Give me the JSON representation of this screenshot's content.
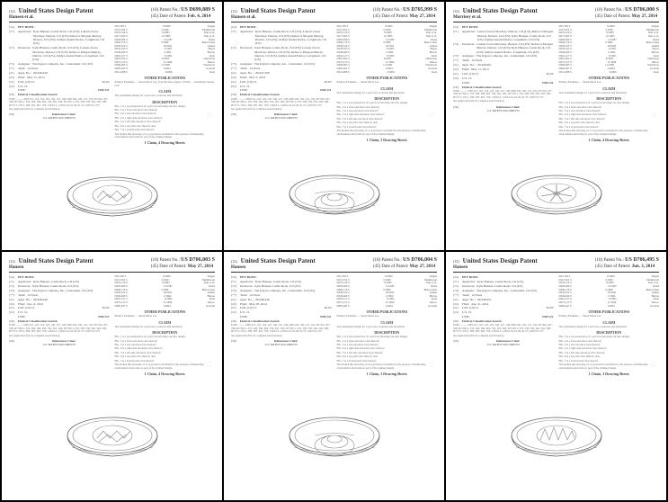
{
  "common": {
    "country_title": "United States Design Patent",
    "labels": {
      "patent_no": "Patent No.:",
      "date": "Date of Patent:",
      "title_code": "(54)",
      "applicant_code": "(71)",
      "applicant_label": "Applicant:",
      "inventors_code": "(72)",
      "inventors_label": "Inventors:",
      "assignee_code": "(73)",
      "assignee_label": "Assignee:",
      "term_code": "(**)",
      "term_label": "Term:",
      "appl_code": "(21)",
      "appl_label": "Appl. No.:",
      "filed_code": "(22)",
      "filed_label": "Filed:",
      "loc_code": "(51)",
      "loc_label": "LOC (10) Cl.",
      "uscl_code": "(52)",
      "uscl_label": "U.S. Cl.",
      "search_code": "(58)",
      "search_label": "Field of Classification Search",
      "refs_code": "(56)",
      "refs_label": "References Cited",
      "desc_head": "DESCRIPTION",
      "claim_head": "CLAIM",
      "refs_head": "U.S. PATENT DOCUMENTS",
      "other_head": "OTHER PUBLICATIONS"
    },
    "assignee": "The Kyjen Company, Inc., Centennial, CO (US)",
    "term": "14 Years",
    "loc": "30-03",
    "uscl_class": "USPC",
    "uscl_val": "D30/121",
    "search_text": "USPC .......... D30/121, 122, 124, 125, 126, 127, 128, D30/129, 130, 131, 132; D7/354, 357, 358, D7/392.1, 553, 560, 584, 602, 704, 361, 509, D7/550.1, 555, 558, 559, 562, 563, 568, D7/571, 576.1, 580, 587, 601, 703; 119/61.5, 119/61.54, 61.56, 61.57; 220/574, 575",
    "search_footer": "See application file for complete search history.",
    "claim_text": "The ornamental design for a pet bowl, as shown and described.",
    "desc_lines": [
      "FIG. 1 is a top perspective of a pet bowl showing our new design;",
      "FIG. 2 is a front elevation view thereof;",
      "FIG. 3 is a rear elevation view thereof;",
      "FIG. 4 is a right side elevation view thereof;",
      "FIG. 5 is a left side elevation view thereof;",
      "FIG. 6 is a top plan view thereof; and,",
      "FIG. 7 is a bottom plan view thereof.",
      "The broken line showing of a top portion is included for the purpose of illustrating environment and forms no part of the claimed design."
    ],
    "colors": {
      "border": "#000000",
      "text": "#333333",
      "faint": "#666666"
    }
  },
  "patents": [
    {
      "header_idx": "(12)",
      "inventor_line": "Hansen et al.",
      "patent_no_label": "(10)",
      "date_label": "(45)",
      "patent_no": "US D699,889 S",
      "date": "Feb. 4, 2014",
      "title": "PET BOWL",
      "applicant": "Kyle Hansen, Castle Rock, CO (US); Lauren Jowsa Morrisey, Denver, CO (US); Rebecca Morgan Murray, Denver, CO (US); Ashlyn Anand Dadoo, Longmont, CO (US)",
      "inventors": "Kyle Hansen, Castle Rock, CO (US); Lauren Jowsa Morrisey, Denver, CO (US); Rebecca Morgan Murray, Denver, CO (US); Ashlyn Anand Dadoo, Longmont, CO (US)",
      "appl_no": "29/448,459",
      "filed": "Mar. 11, 2013",
      "claim_summary": "1 Claim, 4 Drawing Sheets",
      "refs": [
        {
          "no": "D33,183 S",
          "date": "8/1900",
          "name": "Teague"
        },
        {
          "no": "D115,052 S",
          "date": "5/1939",
          "name": "Malmstrom"
        },
        {
          "no": "D270,129 S",
          "date": "8/1983",
          "name": "Dart et al."
        },
        {
          "no": "D271,843 S",
          "date": "12/1983",
          "name": "Dart et al."
        },
        {
          "no": "D293,499 S",
          "date": "12/1987",
          "name": "Weiss"
        },
        {
          "no": "D300,176 S",
          "date": "3/1989",
          "name": "Meier-Chen"
        },
        {
          "no": "D330,612 S",
          "date": "10/1992",
          "name": "Asmus"
        },
        {
          "no": "D333,543 S",
          "date": "2/1993",
          "name": "Hayes"
        },
        {
          "no": "D346,469 S",
          "date": "2/1994",
          "name": "Burton"
        },
        {
          "no": "D361,417 S",
          "date": "8/1995",
          "name": "Kratt"
        },
        {
          "no": "D361,654 S",
          "date": "8/1995",
          "name": "Gilbertson"
        },
        {
          "no": "D375,215 S",
          "date": "11/1996",
          "name": "DeLeo"
        },
        {
          "no": "D396,063 S",
          "date": "11/1998",
          "name": "Warburton"
        },
        {
          "no": "D485,647 S",
          "date": "1/2004",
          "name": "Grazioli"
        },
        {
          "no": "D514,908 S",
          "date": "2/2006",
          "name": "Kent"
        }
      ],
      "examiner_block": "Primary Examiner — Susan Moon Lee; (74) Attorney, Agent, or Firm — Greenberg Traurig LLP",
      "figure_type": "angular"
    },
    {
      "header_idx": "(12)",
      "inventor_line": "Hansen et al.",
      "patent_no_label": "(10)",
      "date_label": "(45)",
      "patent_no": "US D705,999 S",
      "date": "May 27, 2014",
      "title": "PET BOWL",
      "applicant": "Kyle Hansen, Castle Rock, CO (US); Lauren Jowsa Morrisey, Denver, CO (US); Rebecca Morgan Murray, Denver, CO (US); Ashlyn Anand Dadoo, Longmont, CO (US)",
      "inventors": "Kyle Hansen, Castle Rock, CO (US); Lauren Jowsa Morrisey, Denver, CO (US); Rebecca Morgan Murray, Denver, CO (US); Ashlyn Anand Dadoo, Longmont, CO (US)",
      "appl_no": "29/447,500",
      "filed": "Mar. 5, 2013",
      "claim_summary": "1 Claim, 3 Drawing Sheets",
      "refs": [
        {
          "no": "D33,183 S",
          "date": "8/1900",
          "name": "Teague"
        },
        {
          "no": "D115,052 S",
          "date": "5/1939",
          "name": "Malmstrom"
        },
        {
          "no": "D270,129 S",
          "date": "8/1983",
          "name": "Dart et al."
        },
        {
          "no": "D271,843 S",
          "date": "12/1983",
          "name": "Dart et al."
        },
        {
          "no": "D293,499 S",
          "date": "12/1987",
          "name": "Weiss"
        },
        {
          "no": "D300,176 S",
          "date": "3/1989",
          "name": "Meier-Chen"
        },
        {
          "no": "D330,612 S",
          "date": "10/1992",
          "name": "Asmus"
        },
        {
          "no": "D333,543 S",
          "date": "2/1993",
          "name": "Hayes"
        },
        {
          "no": "D346,469 S",
          "date": "2/1994",
          "name": "Burton"
        },
        {
          "no": "D361,417 S",
          "date": "8/1995",
          "name": "Kratt"
        },
        {
          "no": "D361,654 S",
          "date": "8/1995",
          "name": "Gilbertson"
        },
        {
          "no": "D375,215 S",
          "date": "11/1996",
          "name": "DeLeo"
        },
        {
          "no": "D396,063 S",
          "date": "11/1998",
          "name": "Warburton"
        },
        {
          "no": "D485,647 S",
          "date": "1/2004",
          "name": "Grazioli"
        },
        {
          "no": "D514,908 S",
          "date": "2/2006",
          "name": "Kent"
        }
      ],
      "examiner_block": "Primary Examiner — Susan Moon Lee",
      "figure_type": "spiral"
    },
    {
      "header_idx": "(12)",
      "inventor_line": "Morrisey et al.",
      "patent_no_label": "(10)",
      "date_label": "(45)",
      "patent_no": "US D706,000 S",
      "date": "May 27, 2014",
      "title": "PET BOWL",
      "applicant": "Lauren Jowsa Morrisey, Denver, CO (US); Rebecca Morgan Murray, Denver, CO (US); Kyle Hansen, Castle Rock, CO (US); Ashlyn Anand Dadoo, Longmont, CO (US)",
      "inventors": "Lauren Jowsa Morrisey, Denver, CO (US); Rebecca Morgan Murray, Denver, CO (US); Kyle Hansen, Castle Rock, CO (US); Ashlyn Anand Dadoo, Longmont, CO (US)",
      "appl_no": "29/448,461",
      "filed": "Mar. 11, 2013",
      "claim_summary": "1 Claim, 4 Drawing Sheets",
      "refs": [
        {
          "no": "D33,183 S",
          "date": "8/1900",
          "name": "Teague"
        },
        {
          "no": "D115,052 S",
          "date": "5/1939",
          "name": "Malmstrom"
        },
        {
          "no": "D270,129 S",
          "date": "8/1983",
          "name": "Dart et al."
        },
        {
          "no": "D271,843 S",
          "date": "12/1983",
          "name": "Dart et al."
        },
        {
          "no": "D293,499 S",
          "date": "12/1987",
          "name": "Weiss"
        },
        {
          "no": "D300,176 S",
          "date": "3/1989",
          "name": "Meier-Chen"
        },
        {
          "no": "D330,612 S",
          "date": "10/1992",
          "name": "Asmus"
        },
        {
          "no": "D333,543 S",
          "date": "2/1993",
          "name": "Hayes"
        },
        {
          "no": "D346,469 S",
          "date": "2/1994",
          "name": "Burton"
        },
        {
          "no": "D361,417 S",
          "date": "8/1995",
          "name": "Kratt"
        },
        {
          "no": "D361,654 S",
          "date": "8/1995",
          "name": "Gilbertson"
        },
        {
          "no": "D375,215 S",
          "date": "11/1996",
          "name": "DeLeo"
        },
        {
          "no": "D396,063 S",
          "date": "11/1998",
          "name": "Warburton"
        },
        {
          "no": "D485,647 S",
          "date": "1/2004",
          "name": "Grazioli"
        },
        {
          "no": "D514,908 S",
          "date": "2/2006",
          "name": "Kent"
        }
      ],
      "examiner_block": "Primary Examiner — Susan Moon Lee",
      "figure_type": "blades"
    },
    {
      "header_idx": "(12)",
      "inventor_line": "Hansen",
      "patent_no_label": "(10)",
      "date_label": "(45)",
      "patent_no": "US D706,003 S",
      "date": "May 27, 2014",
      "title": "PET BOWL",
      "applicant": "Kyle Hansen, Castle Rock, CO (US)",
      "inventors": "Kyle Hansen, Castle Rock, CO (US)",
      "appl_no": "29/448,446",
      "filed": "Dec. 9, 2013",
      "claim_summary": "1 Claim, 4 Drawing Sheets",
      "refs": [
        {
          "no": "D33,183 S",
          "date": "8/1900",
          "name": "Teague"
        },
        {
          "no": "D115,052 S",
          "date": "5/1939",
          "name": "Malmstrom"
        },
        {
          "no": "D270,129 S",
          "date": "8/1983",
          "name": "Dart et al."
        },
        {
          "no": "D293,499 S",
          "date": "12/1987",
          "name": "Weiss"
        },
        {
          "no": "D300,176 S",
          "date": "3/1989",
          "name": "Meier-Chen"
        },
        {
          "no": "D330,612 S",
          "date": "10/1992",
          "name": "Asmus"
        },
        {
          "no": "D346,469 S",
          "date": "2/1994",
          "name": "Burton"
        },
        {
          "no": "D361,417 S",
          "date": "8/1995",
          "name": "Kratt"
        },
        {
          "no": "D375,215 S",
          "date": "11/1996",
          "name": "DeLeo"
        },
        {
          "no": "D485,647 S",
          "date": "1/2004",
          "name": "Grazioli"
        }
      ],
      "examiner_block": "Primary Examiner — Susan Moon Lee",
      "figure_type": "angular"
    },
    {
      "header_idx": "(12)",
      "inventor_line": "Hansen",
      "patent_no_label": "(10)",
      "date_label": "(45)",
      "patent_no": "US D706,004 S",
      "date": "May 27, 2014",
      "title": "PET BOWL",
      "applicant": "Kyle Hansen, Castle Rock, CO (US)",
      "inventors": "Kyle Hansen, Castle Rock, CO (US)",
      "appl_no": "29/448,449",
      "filed": "May 28, 2014",
      "claim_summary": "1 Claim, 3 Drawing Sheets",
      "refs": [
        {
          "no": "D33,183 S",
          "date": "8/1900",
          "name": "Teague"
        },
        {
          "no": "D115,052 S",
          "date": "5/1939",
          "name": "Malmstrom"
        },
        {
          "no": "D270,129 S",
          "date": "8/1983",
          "name": "Dart et al."
        },
        {
          "no": "D293,499 S",
          "date": "12/1987",
          "name": "Weiss"
        },
        {
          "no": "D300,176 S",
          "date": "3/1989",
          "name": "Meier-Chen"
        },
        {
          "no": "D330,612 S",
          "date": "10/1992",
          "name": "Asmus"
        },
        {
          "no": "D346,469 S",
          "date": "2/1994",
          "name": "Burton"
        },
        {
          "no": "D361,417 S",
          "date": "8/1995",
          "name": "Kratt"
        },
        {
          "no": "D375,215 S",
          "date": "11/1996",
          "name": "DeLeo"
        },
        {
          "no": "D485,647 S",
          "date": "1/2004",
          "name": "Grazioli"
        }
      ],
      "examiner_block": "Primary Examiner — Susan Moon Lee",
      "figure_type": "spiral"
    },
    {
      "header_idx": "(12)",
      "inventor_line": "Hansen",
      "patent_no_label": "(10)",
      "date_label": "(45)",
      "patent_no": "US D706,495 S",
      "date": "Jun. 3, 2014",
      "title": "PET BOWL",
      "applicant": "Kyle Hansen, Castle Rock, CO (US)",
      "inventors": "Kyle Hansen, Castle Rock, CO (US)",
      "appl_no": "29/448,451",
      "filed": "Apr. 21, 2014",
      "claim_summary": "1 Claim, 3 Drawing Sheets",
      "refs": [
        {
          "no": "D33,183 S",
          "date": "8/1900",
          "name": "Teague"
        },
        {
          "no": "D115,052 S",
          "date": "5/1939",
          "name": "Malmstrom"
        },
        {
          "no": "D270,129 S",
          "date": "8/1983",
          "name": "Dart et al."
        },
        {
          "no": "D293,499 S",
          "date": "12/1987",
          "name": "Weiss"
        },
        {
          "no": "D300,176 S",
          "date": "3/1989",
          "name": "Meier-Chen"
        },
        {
          "no": "D330,612 S",
          "date": "10/1992",
          "name": "Asmus"
        },
        {
          "no": "D346,469 S",
          "date": "2/1994",
          "name": "Burton"
        },
        {
          "no": "D361,417 S",
          "date": "8/1995",
          "name": "Kratt"
        },
        {
          "no": "D375,215 S",
          "date": "11/1996",
          "name": "DeLeo"
        },
        {
          "no": "D485,647 S",
          "date": "1/2004",
          "name": "Grazioli"
        }
      ],
      "examiner_block": "Primary Examiner — Susan Moon Lee",
      "figure_type": "peaks"
    }
  ]
}
